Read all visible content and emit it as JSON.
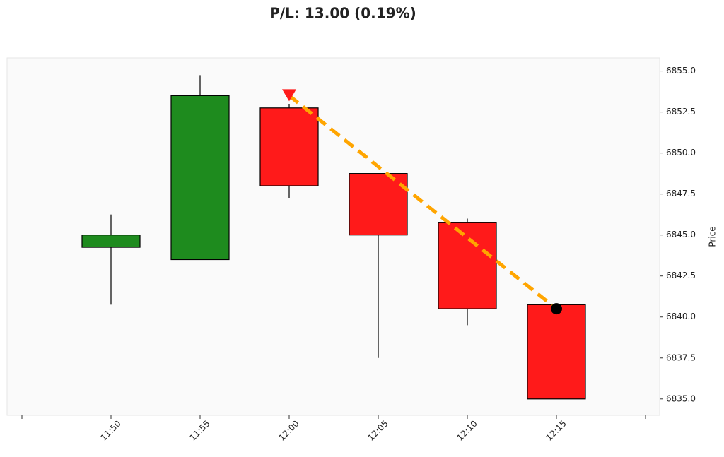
{
  "chart_data": {
    "type": "candlestick",
    "title": "P/L: 13.00 (0.19%)",
    "y_label": "Price",
    "categories": [
      null,
      "11:50",
      "11:55",
      "12:00",
      "12:05",
      "12:10",
      "12:15",
      null
    ],
    "open": [
      null,
      6844.25,
      6843.5,
      6852.75,
      6848.75,
      6845.75,
      6840.75,
      null
    ],
    "high": [
      null,
      6846.25,
      6854.75,
      6853.0,
      6848.75,
      6846.0,
      6840.75,
      null
    ],
    "low": [
      null,
      6840.75,
      6843.5,
      6847.25,
      6837.5,
      6839.5,
      6835.0,
      null
    ],
    "close": [
      null,
      6845.0,
      6853.5,
      6848.0,
      6845.0,
      6840.5,
      6835.0,
      null
    ],
    "up_color": "#1e8b1e",
    "down_color": "#ff1a1a",
    "ylim": [
      6834.0,
      6855.8
    ],
    "yticks": [
      {
        "value": 6835,
        "label": "6835.0"
      },
      {
        "value": 6837.5,
        "label": "6837.5"
      },
      {
        "value": 6840,
        "label": "6840.0"
      },
      {
        "value": 6842.5,
        "label": "6842.5"
      },
      {
        "value": 6845,
        "label": "6845.0"
      },
      {
        "value": 6847.5,
        "label": "6847.5"
      },
      {
        "value": 6850,
        "label": "6850.0"
      },
      {
        "value": 6852.5,
        "label": "6852.5"
      },
      {
        "value": 6855,
        "label": "6855.0"
      }
    ],
    "trade": {
      "entry": {
        "x": "12:00",
        "price": 6853.5
      },
      "exit": {
        "x": "12:15",
        "price": 6840.5
      },
      "color": "#ffa500"
    }
  }
}
